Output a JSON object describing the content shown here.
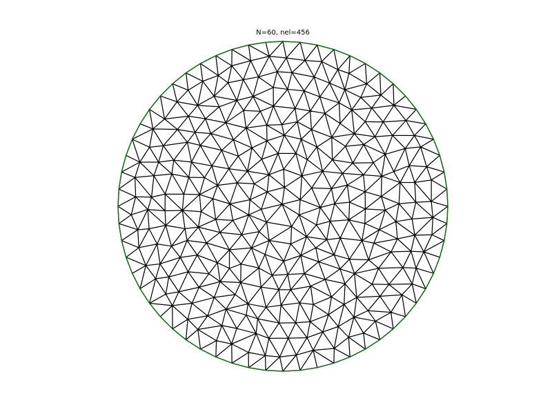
{
  "title": "N=60, nel=456",
  "mesh": {
    "boundary_nodes": 60,
    "elements": 456,
    "domain": "unit-disk",
    "edge_color": "#000000",
    "boundary_color": "#1a6b1a",
    "background": "#ffffff"
  }
}
